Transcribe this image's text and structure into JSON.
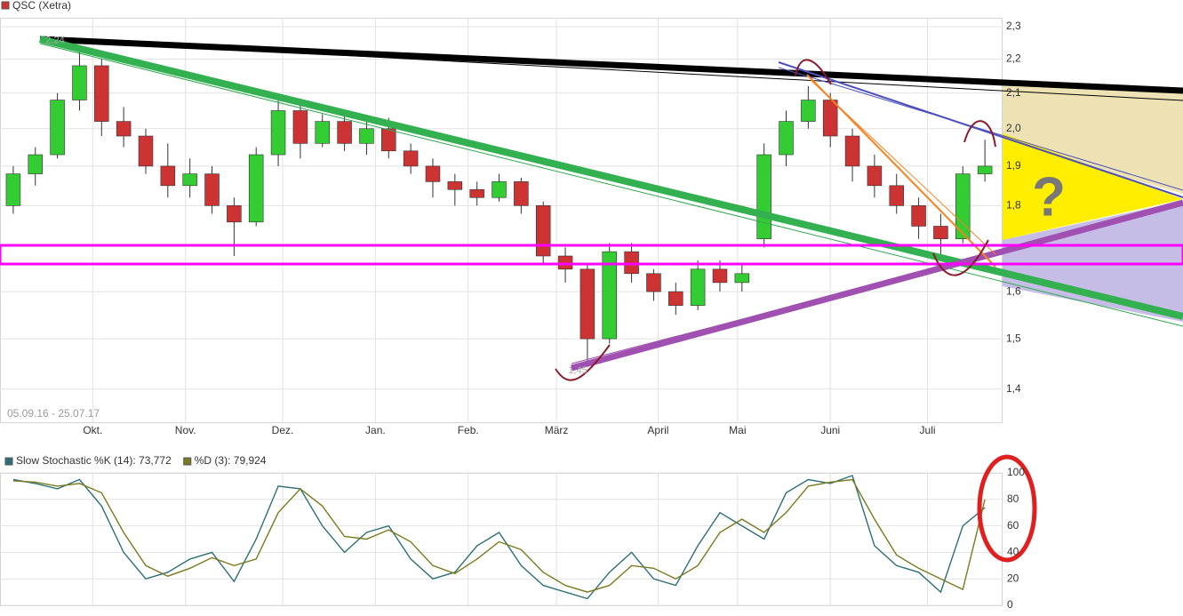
{
  "chart_data": [
    {
      "type": "candlestick",
      "title": "QSC (Xetra)",
      "date_range": "05.09.16 - 25.07.17",
      "log_scale": true,
      "grid": true,
      "up_color": "#33cc33",
      "down_color": "#cc3333",
      "title_color": "#cc3333",
      "xlim": [
        -1,
        226
      ],
      "xticks": [
        {
          "value": 20,
          "label": "Okt."
        },
        {
          "value": 41,
          "label": "Nov."
        },
        {
          "value": 63,
          "label": "Dez."
        },
        {
          "value": 84,
          "label": "Jan."
        },
        {
          "value": 105,
          "label": "Feb."
        },
        {
          "value": 125,
          "label": "März"
        },
        {
          "value": 148,
          "label": "April"
        },
        {
          "value": 166,
          "label": "Mai"
        },
        {
          "value": 187,
          "label": "Juni"
        },
        {
          "value": 209,
          "label": "Juli"
        }
      ],
      "ylim": [
        1.338,
        2.328
      ],
      "yticks": [
        {
          "value": 1.4,
          "label": "1,4"
        },
        {
          "value": 1.5,
          "label": "1,5"
        },
        {
          "value": 1.6,
          "label": "1,6"
        },
        {
          "value": 1.8,
          "label": "1,8"
        },
        {
          "value": 1.9,
          "label": "1,9"
        },
        {
          "value": 2.0,
          "label": "2,0"
        },
        {
          "value": 2.1,
          "label": "2,1"
        },
        {
          "value": 2.2,
          "label": "2,2"
        },
        {
          "value": 2.3,
          "label": "2,3"
        }
      ],
      "x": [
        2,
        7,
        12,
        17,
        22,
        27,
        32,
        37,
        42,
        47,
        52,
        57,
        62,
        67,
        72,
        77,
        82,
        87,
        92,
        97,
        102,
        107,
        112,
        117,
        122,
        127,
        132,
        137,
        142,
        147,
        152,
        157,
        162,
        167,
        172,
        177,
        182,
        187,
        192,
        197,
        202,
        207,
        212,
        217,
        222
      ],
      "open": [
        1.8,
        1.88,
        1.93,
        2.08,
        2.18,
        2.02,
        1.98,
        1.9,
        1.85,
        1.88,
        1.8,
        1.76,
        1.93,
        2.05,
        1.96,
        2.02,
        1.96,
        2.0,
        1.94,
        1.9,
        1.86,
        1.84,
        1.82,
        1.86,
        1.8,
        1.68,
        1.65,
        1.5,
        1.69,
        1.64,
        1.6,
        1.57,
        1.65,
        1.62,
        1.72,
        1.93,
        2.02,
        2.08,
        1.98,
        1.9,
        1.85,
        1.8,
        1.75,
        1.72,
        1.88
      ],
      "high": [
        1.9,
        1.95,
        2.1,
        2.24,
        2.2,
        2.06,
        2.0,
        1.96,
        1.92,
        1.9,
        1.82,
        1.95,
        2.08,
        2.07,
        2.04,
        2.04,
        2.03,
        2.03,
        1.96,
        1.92,
        1.88,
        1.86,
        1.88,
        1.87,
        1.81,
        1.7,
        1.66,
        1.71,
        1.71,
        1.65,
        1.62,
        1.67,
        1.67,
        1.66,
        1.96,
        2.05,
        2.12,
        2.1,
        2.0,
        1.93,
        1.88,
        1.82,
        1.78,
        1.9,
        1.97
      ],
      "low": [
        1.78,
        1.85,
        1.92,
        2.05,
        1.98,
        1.95,
        1.88,
        1.82,
        1.82,
        1.78,
        1.68,
        1.75,
        1.9,
        1.92,
        1.95,
        1.94,
        1.93,
        1.92,
        1.88,
        1.82,
        1.8,
        1.8,
        1.81,
        1.78,
        1.66,
        1.62,
        1.45,
        1.49,
        1.62,
        1.58,
        1.55,
        1.56,
        1.6,
        1.6,
        1.7,
        1.9,
        2.0,
        1.95,
        1.86,
        1.82,
        1.78,
        1.72,
        1.68,
        1.71,
        1.86
      ],
      "close": [
        1.88,
        1.93,
        2.08,
        2.18,
        2.02,
        1.98,
        1.9,
        1.85,
        1.88,
        1.8,
        1.76,
        1.93,
        2.05,
        1.96,
        2.02,
        1.96,
        2.0,
        1.94,
        1.9,
        1.86,
        1.84,
        1.82,
        1.86,
        1.8,
        1.68,
        1.65,
        1.5,
        1.69,
        1.64,
        1.6,
        1.57,
        1.65,
        1.62,
        1.64,
        1.93,
        2.02,
        2.08,
        1.98,
        1.9,
        1.85,
        1.8,
        1.75,
        1.72,
        1.88,
        1.9
      ],
      "annotations": [
        {
          "value": 2.24,
          "label": "2,24"
        },
        {
          "value": 1.45,
          "label": "1,45"
        }
      ],
      "question_mark": "?"
    },
    {
      "type": "line",
      "grid": true,
      "xlim": [
        -1,
        226
      ],
      "ylim": [
        0,
        100
      ],
      "yticks": [
        0,
        20,
        40,
        60,
        80,
        100
      ],
      "x": [
        2,
        7,
        12,
        17,
        22,
        27,
        32,
        37,
        42,
        47,
        52,
        57,
        62,
        67,
        72,
        77,
        82,
        87,
        92,
        97,
        102,
        107,
        112,
        117,
        122,
        127,
        132,
        137,
        142,
        147,
        152,
        157,
        162,
        167,
        172,
        177,
        182,
        187,
        192,
        197,
        202,
        207,
        212,
        217,
        222
      ],
      "series": [
        {
          "name": "Slow Stochastic %K (14): 73,772",
          "color": "#2e6f75",
          "values": [
            95,
            92,
            88,
            95,
            75,
            40,
            20,
            25,
            35,
            40,
            18,
            50,
            90,
            88,
            60,
            40,
            55,
            60,
            35,
            20,
            25,
            45,
            55,
            30,
            15,
            10,
            5,
            25,
            40,
            20,
            15,
            45,
            70,
            60,
            50,
            85,
            95,
            92,
            98,
            45,
            30,
            25,
            10,
            60,
            73.772
          ]
        },
        {
          "name": "%D (3): 79,924",
          "color": "#7a7a1e",
          "values": [
            94,
            93,
            90,
            92,
            85,
            55,
            30,
            22,
            28,
            36,
            30,
            35,
            70,
            88,
            75,
            52,
            50,
            57,
            48,
            30,
            24,
            35,
            48,
            42,
            25,
            15,
            10,
            15,
            30,
            28,
            20,
            30,
            55,
            65,
            55,
            70,
            90,
            93,
            95,
            65,
            38,
            28,
            20,
            12,
            79.924
          ]
        }
      ]
    }
  ]
}
